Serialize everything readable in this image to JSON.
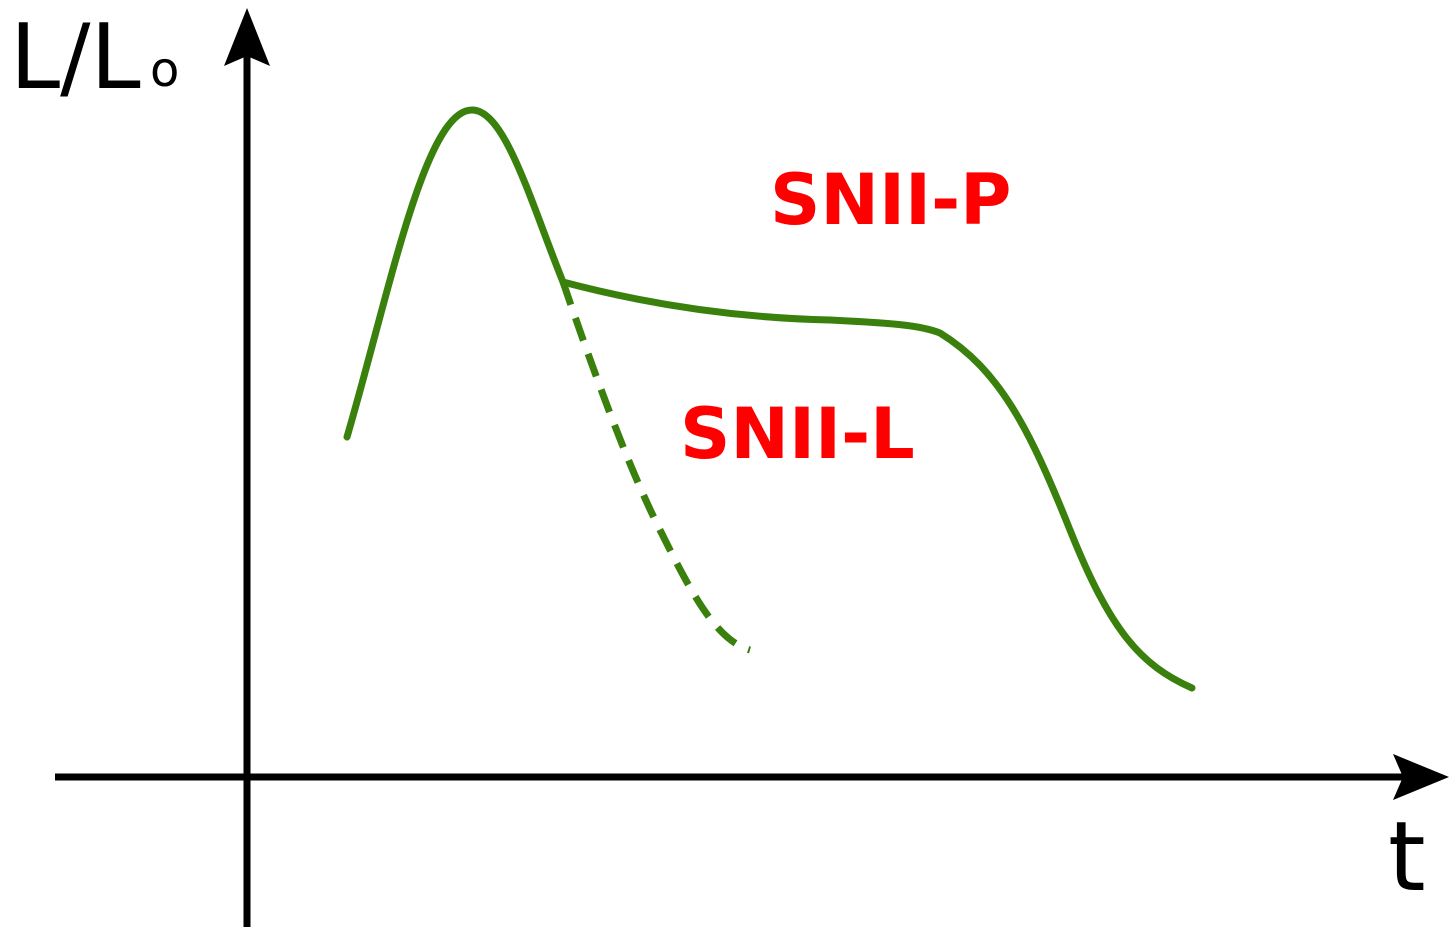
{
  "axes": {
    "y_label": "L/L",
    "y_label_sub": "o",
    "x_label": "t"
  },
  "curves": [
    {
      "label": "SNII-P"
    },
    {
      "label": "SNII-L"
    }
  ]
}
